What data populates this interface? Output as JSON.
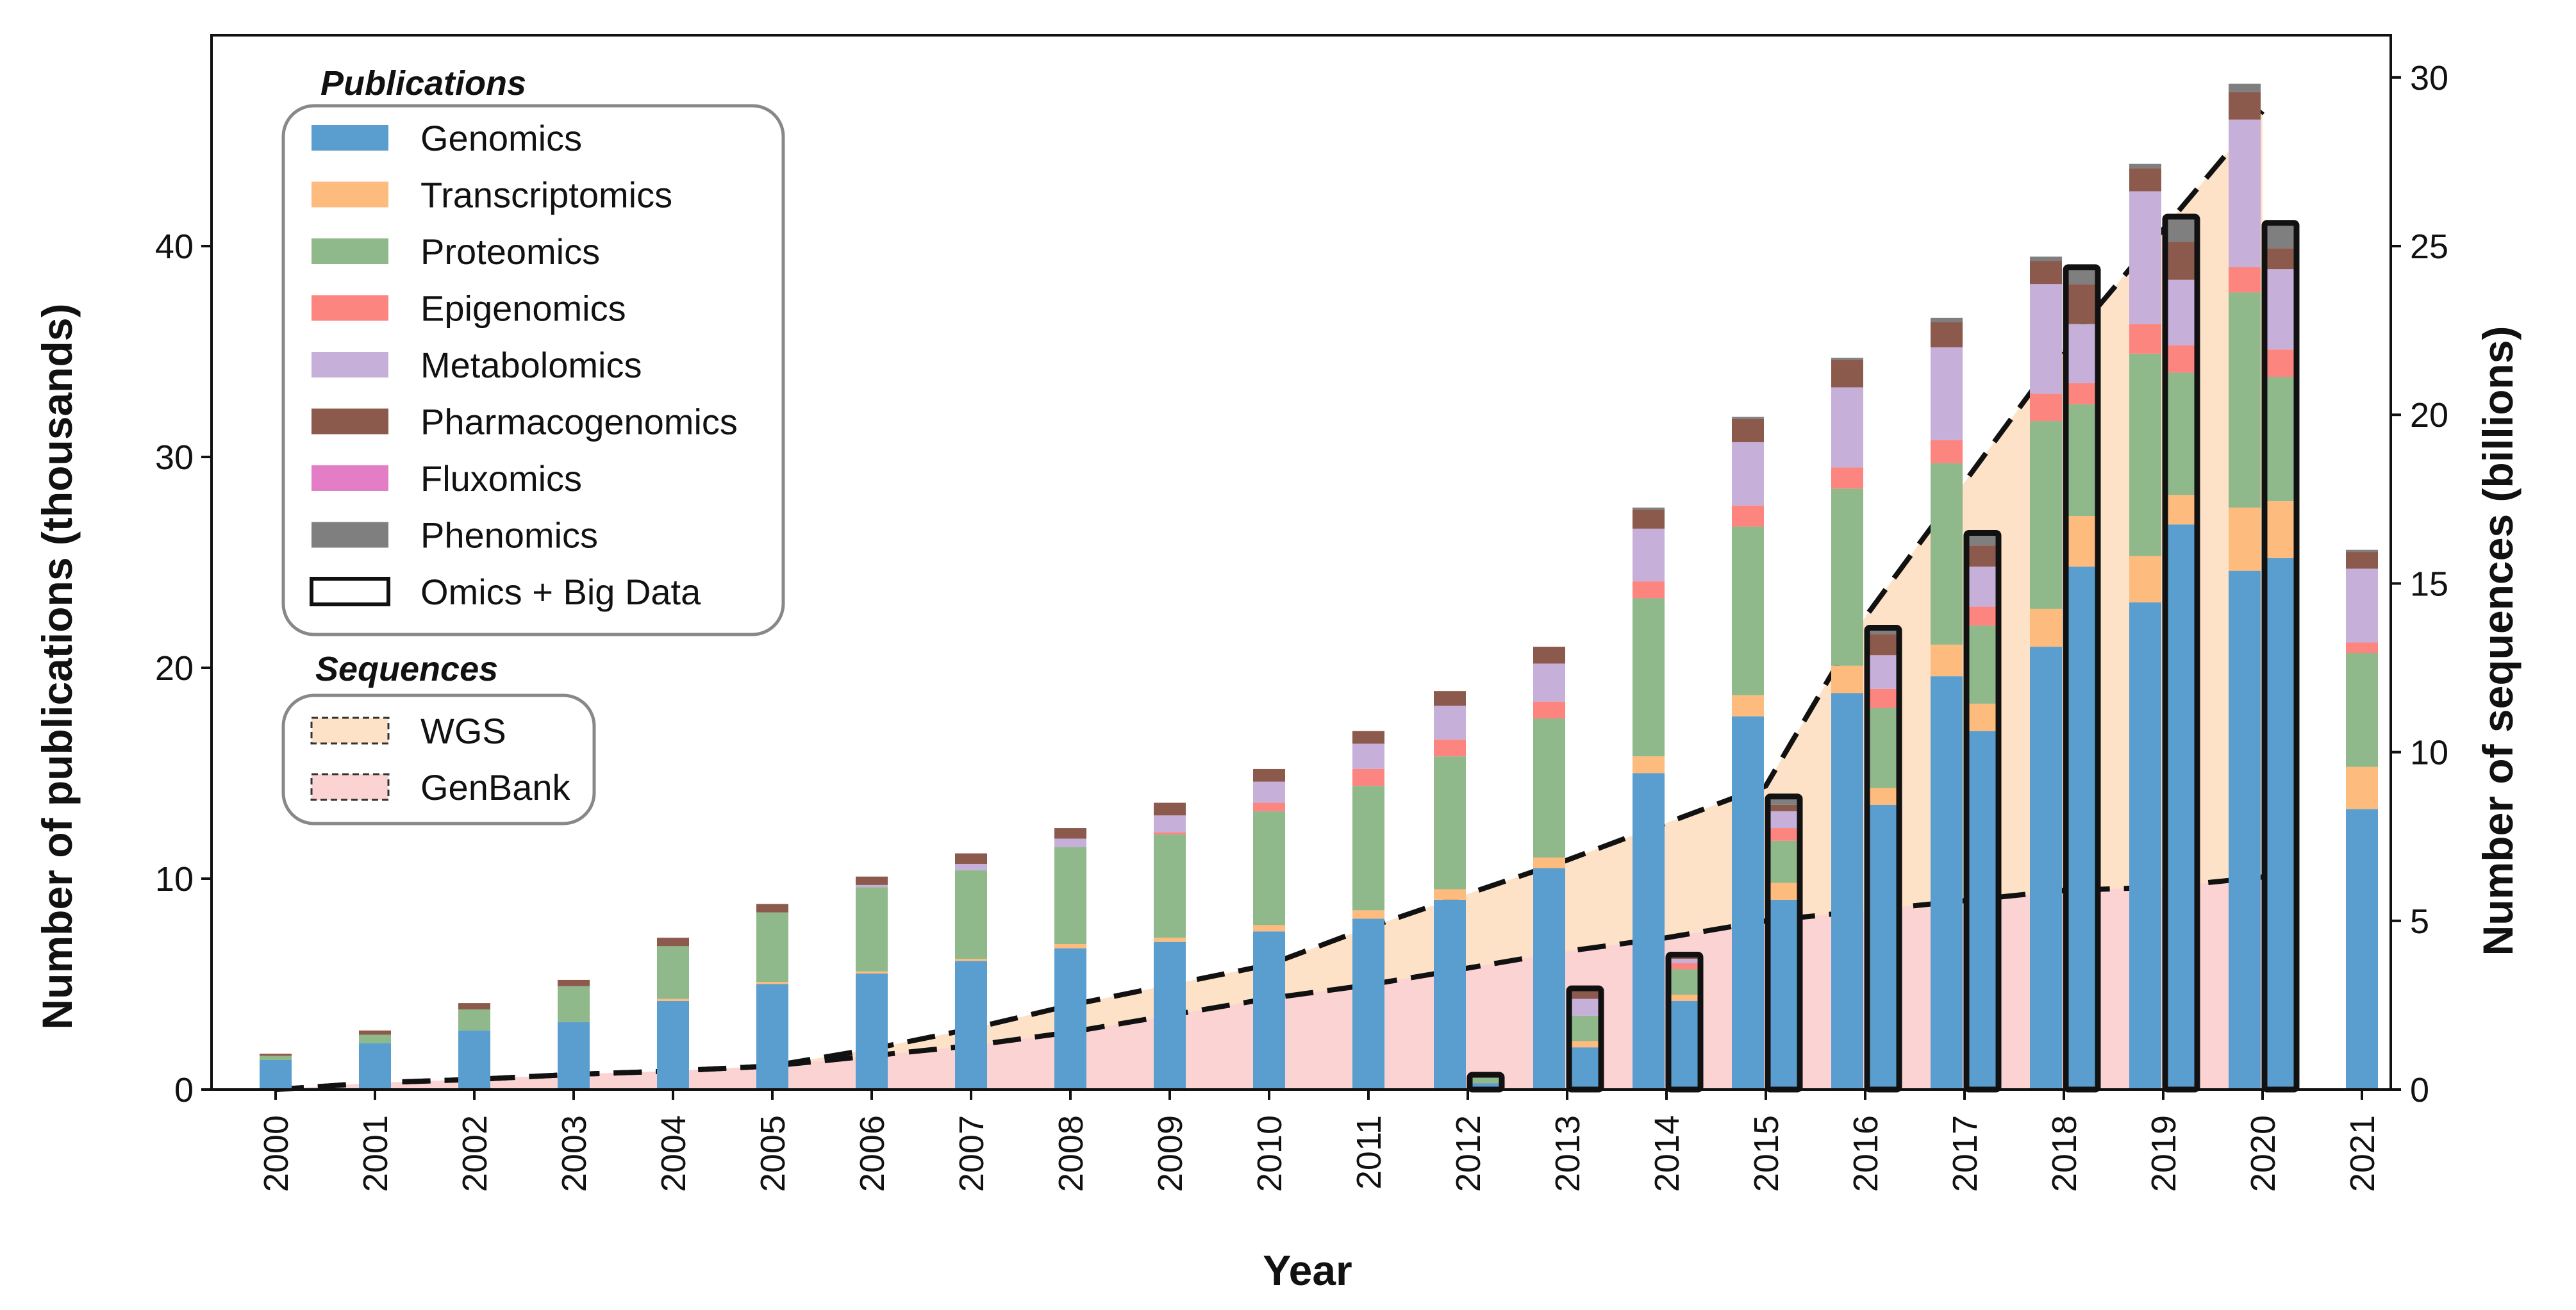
{
  "chart_data": {
    "type": "bar",
    "subtype": "stacked-bar-with-area",
    "xlabel": "Year",
    "ylabel_left": "Number of publications (thousands)",
    "ylabel_right": "Number of sequences (billions)",
    "ylim_left": [
      0,
      50
    ],
    "ylim_right": [
      0,
      31.25
    ],
    "yticks_left": [
      "0",
      "10",
      "20",
      "30",
      "40"
    ],
    "yticks_right": [
      "0",
      "5",
      "10",
      "15",
      "20",
      "25",
      "30"
    ],
    "categories": [
      "2000",
      "2001",
      "2002",
      "2003",
      "2004",
      "2005",
      "2006",
      "2007",
      "2008",
      "2009",
      "2010",
      "2011",
      "2012",
      "2013",
      "2014",
      "2015",
      "2016",
      "2017",
      "2018",
      "2019",
      "2020",
      "2021"
    ],
    "legend_publications_title": "Publications",
    "legend_sequences_title": "Sequences",
    "series": [
      {
        "name": "Genomics",
        "color": "#5a9ecf",
        "values": [
          1.4,
          2.2,
          2.8,
          3.2,
          4.2,
          5.0,
          5.5,
          6.1,
          6.7,
          7.0,
          7.5,
          8.1,
          9.0,
          10.5,
          15.0,
          17.7,
          18.8,
          19.6,
          21.0,
          23.1,
          24.6,
          13.3
        ]
      },
      {
        "name": "Transcriptomics",
        "color": "#fdbb7e",
        "values": [
          0,
          0,
          0,
          0,
          0.1,
          0.1,
          0.1,
          0.1,
          0.2,
          0.2,
          0.3,
          0.4,
          0.5,
          0.5,
          0.8,
          1.0,
          1.3,
          1.5,
          1.8,
          2.2,
          3.0,
          2.0
        ]
      },
      {
        "name": "Proteomics",
        "color": "#8fb98a",
        "values": [
          0.2,
          0.4,
          1.0,
          1.7,
          2.5,
          3.3,
          4.0,
          4.2,
          4.6,
          4.9,
          5.4,
          5.9,
          6.3,
          6.6,
          7.5,
          8.0,
          8.4,
          8.6,
          8.9,
          9.6,
          10.2,
          5.4
        ]
      },
      {
        "name": "Epigenomics",
        "color": "#fc8580",
        "values": [
          0,
          0,
          0,
          0,
          0,
          0,
          0,
          0,
          0,
          0.1,
          0.4,
          0.8,
          0.8,
          0.8,
          0.8,
          1.0,
          1.0,
          1.1,
          1.3,
          1.4,
          1.2,
          0.5
        ]
      },
      {
        "name": "Metabolomics",
        "color": "#c6b0da",
        "values": [
          0,
          0,
          0,
          0,
          0,
          0,
          0.1,
          0.3,
          0.4,
          0.8,
          1.0,
          1.2,
          1.6,
          1.8,
          2.5,
          3.0,
          3.8,
          4.4,
          5.2,
          6.3,
          7.0,
          3.5
        ]
      },
      {
        "name": "Pharmacogenomics",
        "color": "#8c5a4d",
        "values": [
          0.1,
          0.2,
          0.3,
          0.3,
          0.4,
          0.4,
          0.4,
          0.5,
          0.5,
          0.6,
          0.6,
          0.6,
          0.7,
          0.8,
          0.9,
          1.1,
          1.3,
          1.2,
          1.1,
          1.1,
          1.3,
          0.8
        ]
      },
      {
        "name": "Fluxomics",
        "color": "#e37dc6",
        "values": [
          0,
          0,
          0,
          0,
          0,
          0,
          0,
          0,
          0,
          0,
          0,
          0,
          0,
          0,
          0,
          0,
          0,
          0,
          0,
          0,
          0,
          0
        ]
      },
      {
        "name": "Phenomics",
        "color": "#7f7f7f",
        "values": [
          0,
          0,
          0,
          0,
          0,
          0,
          0,
          0,
          0,
          0,
          0,
          0,
          0,
          0,
          0.1,
          0.1,
          0.1,
          0.2,
          0.2,
          0.2,
          0.4,
          0.1
        ]
      }
    ],
    "omics_big_data": {
      "name": "Omics + Big Data",
      "categories": [
        "2012",
        "2013",
        "2014",
        "2015",
        "2016",
        "2017",
        "2018",
        "2019",
        "2020"
      ],
      "stacks": [
        [
          0.3,
          0,
          0.4,
          0,
          0,
          0,
          0,
          0
        ],
        [
          2.0,
          0.3,
          1.2,
          0,
          0.8,
          0.5,
          0,
          0
        ],
        [
          4.2,
          0.3,
          1.2,
          0.3,
          0.2,
          0.2,
          0,
          0
        ],
        [
          9.0,
          0.8,
          2.0,
          0.6,
          0.8,
          0.3,
          0,
          0.4
        ],
        [
          13.5,
          0.8,
          3.8,
          0.9,
          1.6,
          1.0,
          0,
          0.3
        ],
        [
          17.0,
          1.3,
          3.7,
          0.9,
          1.9,
          1.0,
          0,
          0.6
        ],
        [
          24.8,
          2.4,
          5.3,
          1.0,
          2.8,
          1.9,
          0,
          0.8
        ],
        [
          26.8,
          1.4,
          5.8,
          1.3,
          3.1,
          1.8,
          0,
          1.2
        ],
        [
          25.2,
          2.7,
          5.9,
          1.3,
          3.8,
          1.0,
          0,
          1.2
        ]
      ]
    },
    "sequences": [
      {
        "name": "WGS",
        "color": "#fde2c8",
        "x": [
          2000,
          2001,
          2002,
          2003,
          2004,
          2005,
          2006,
          2007,
          2008,
          2009,
          2010,
          2011,
          2012,
          2013,
          2014,
          2015,
          2016,
          2017,
          2018,
          2019,
          2020
        ],
        "values": [
          0,
          0.2,
          0.3,
          0.45,
          0.55,
          0.7,
          1.2,
          1.8,
          2.5,
          3.1,
          3.7,
          4.8,
          5.8,
          6.8,
          7.9,
          9.0,
          14.0,
          18.0,
          22.0,
          25.5,
          29.0
        ]
      },
      {
        "name": "GenBank",
        "color": "#fbd3d3",
        "x": [
          2000,
          2001,
          2002,
          2003,
          2004,
          2005,
          2006,
          2007,
          2008,
          2009,
          2010,
          2011,
          2012,
          2013,
          2014,
          2015,
          2016,
          2017,
          2018,
          2019,
          2020
        ],
        "values": [
          0,
          0.2,
          0.3,
          0.45,
          0.55,
          0.7,
          1.0,
          1.3,
          1.7,
          2.2,
          2.7,
          3.1,
          3.6,
          4.1,
          4.5,
          5.0,
          5.3,
          5.6,
          5.9,
          6.0,
          6.3
        ]
      }
    ]
  }
}
